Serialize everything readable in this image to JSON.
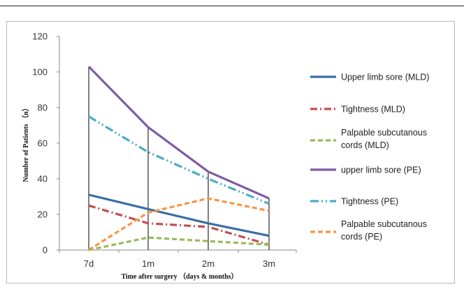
{
  "chart_data": {
    "type": "line",
    "categories": [
      "7d",
      "1m",
      "2m",
      "3m"
    ],
    "xlabel": "Time after surgery （days & months）",
    "ylabel": "Number of Patients （n）",
    "ylim": [
      0,
      120
    ],
    "yticks": [
      0,
      20,
      40,
      60,
      80,
      100,
      120
    ],
    "grid": false,
    "legend_position": "right",
    "series": [
      {
        "name": "Upper limb sore (MLD)",
        "values": [
          31,
          23,
          15,
          8
        ],
        "color": "#3a6ea5",
        "dash": "solid",
        "legend_lines": [
          "Upper limb sore (MLD)"
        ]
      },
      {
        "name": "Tightness (MLD)",
        "values": [
          25,
          15,
          13,
          3
        ],
        "color": "#c0504d",
        "dash": "dashdot",
        "legend_lines": [
          "Tightness (MLD)"
        ]
      },
      {
        "name": "Palpable subcutanous cords (MLD)",
        "values": [
          0,
          7,
          5,
          3
        ],
        "color": "#9bbb59",
        "dash": "dashed",
        "legend_lines": [
          "Palpable subcutanous",
          "cords (MLD)"
        ]
      },
      {
        "name": "upper limb sore (PE)",
        "values": [
          103,
          69,
          44,
          29
        ],
        "color": "#7f5ba6",
        "dash": "solid",
        "legend_lines": [
          "upper limb sore (PE)"
        ]
      },
      {
        "name": "Tightness (PE)",
        "values": [
          75,
          55,
          40,
          26
        ],
        "color": "#4bacc6",
        "dash": "dashdotdot",
        "legend_lines": [
          "Tightness (PE)"
        ]
      },
      {
        "name": "Palpable subcutanous cords (PE)",
        "values": [
          0,
          21,
          29,
          22
        ],
        "color": "#f79646",
        "dash": "dashed",
        "legend_lines": [
          "Palpable subcutanous",
          "cords (PE)"
        ]
      }
    ]
  }
}
